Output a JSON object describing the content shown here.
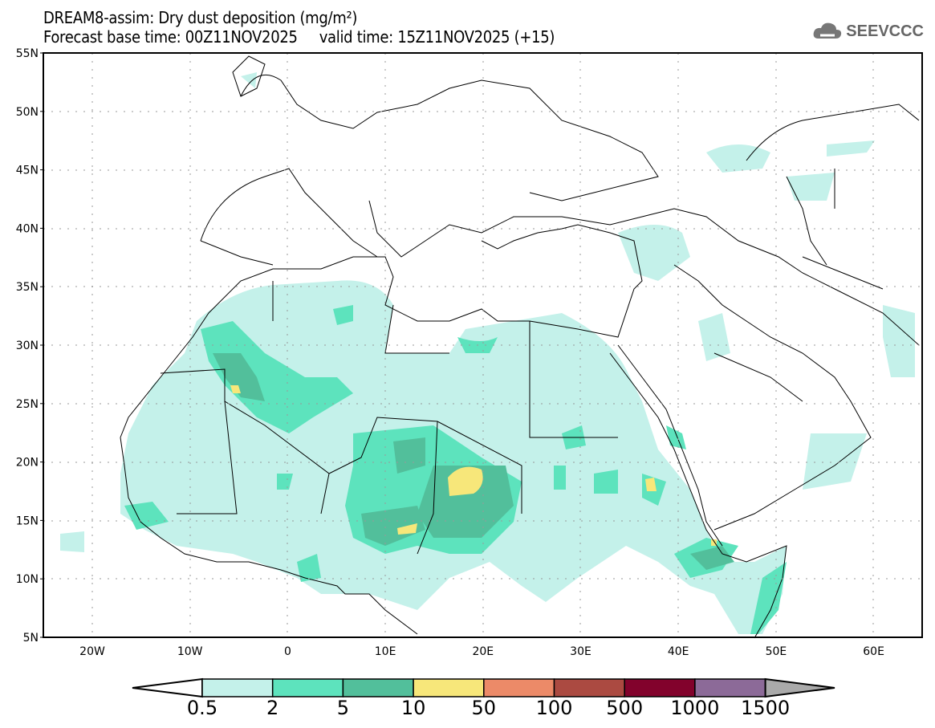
{
  "title": {
    "line1": "DREAM8-assim: Dry dust deposition (mg/m²)",
    "line2": "Forecast base time: 00Z11NOV2025     valid time: 15Z11NOV2025 (+15)"
  },
  "logo": {
    "text": "SEEVCCC"
  },
  "axes": {
    "lat_labels": [
      "55N",
      "50N",
      "45N",
      "40N",
      "35N",
      "30N",
      "25N",
      "20N",
      "15N",
      "10N",
      "5N"
    ],
    "lon_labels": [
      "20W",
      "10W",
      "0",
      "10E",
      "20E",
      "30E",
      "40E",
      "50E",
      "60E"
    ]
  },
  "colorbar": {
    "labels": [
      "0.5",
      "2",
      "5",
      "10",
      "50",
      "100",
      "500",
      "1000",
      "1500"
    ],
    "colors": [
      "#c4f1ea",
      "#5de3bd",
      "#52bf9b",
      "#f7e77a",
      "#ec8a68",
      "#ab4a41",
      "#82022c",
      "#8c6a98"
    ],
    "under_color": "#ffffff",
    "over_color": "#aaaaaa"
  }
}
